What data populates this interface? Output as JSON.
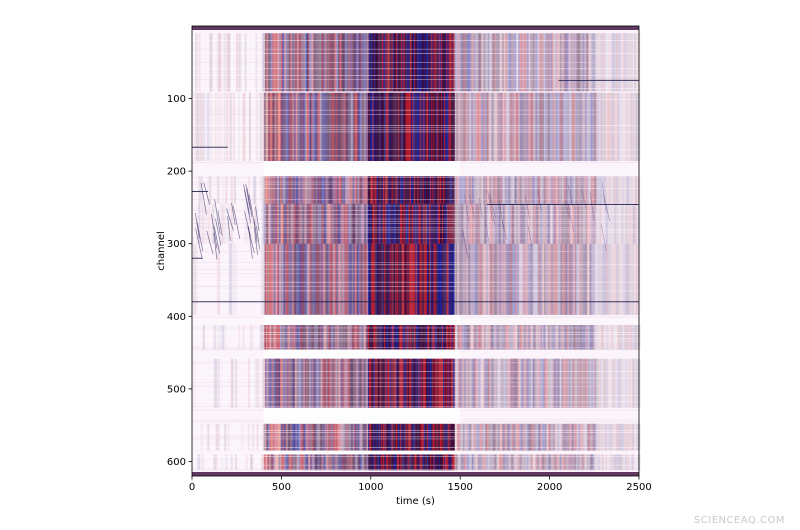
{
  "chart_data": {
    "type": "heatmap",
    "title": "",
    "xlabel": "time (s)",
    "ylabel": "channel",
    "xlim": [
      0,
      2500
    ],
    "ylim": [
      620,
      0
    ],
    "x_ticks": [
      0,
      500,
      1000,
      1500,
      2000,
      2500
    ],
    "y_ticks": [
      100,
      200,
      300,
      400,
      500,
      600
    ],
    "colormap": {
      "negative": "#1a1a8c",
      "zero": "#ffffff",
      "positive": "#b2182b",
      "dark": "#3b0a3a"
    },
    "grid": false,
    "legend": "none",
    "description_of_values": "seismic strain-rate waterfall: strong broadband signal between ~400 s and ~1500 s, strongest 980-1460 s, with quiet channel gaps near 200, 410, 460, 530, 580"
  },
  "watermark": "SCIENCEAQ.COM"
}
